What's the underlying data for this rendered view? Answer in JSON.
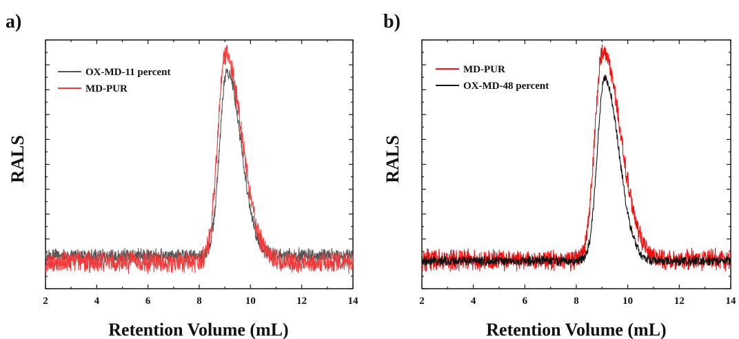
{
  "chart_data": [
    {
      "type": "line",
      "panel_label": "a)",
      "xlabel": "Retention Volume (mL)",
      "ylabel": "RALS",
      "xlim": [
        2,
        14
      ],
      "ylim": [
        -0.12,
        1.0
      ],
      "x_ticks": [
        2,
        4,
        6,
        8,
        10,
        12,
        14
      ],
      "y_tick_labels_shown": false,
      "grid": false,
      "legend_position": "top-left",
      "series": [
        {
          "name": "OX-MD-11 percent",
          "color": "#555555",
          "baseline": 0.03,
          "noise_amplitude": 0.035,
          "peak": {
            "center": 9.08,
            "height": 0.86,
            "sigma_left": 0.28,
            "sigma_right": 0.55
          },
          "x": [
            2,
            8.2,
            8.5,
            8.8,
            9.0,
            9.1,
            9.3,
            9.6,
            10.0,
            10.5,
            11.0,
            12.0,
            14.0
          ],
          "y": [
            0.03,
            0.04,
            0.23,
            0.66,
            0.86,
            0.87,
            0.82,
            0.58,
            0.31,
            0.13,
            0.06,
            0.035,
            0.03
          ]
        },
        {
          "name": "MD-PUR",
          "color": "#ee3a3a",
          "baseline": 0.0,
          "noise_amplitude": 0.055,
          "peak": {
            "center": 9.02,
            "height": 0.93,
            "sigma_left": 0.3,
            "sigma_right": 0.65
          },
          "x": [
            2,
            8.2,
            8.5,
            8.8,
            9.0,
            9.1,
            9.3,
            9.6,
            10.0,
            10.5,
            11.0,
            12.0,
            14.0
          ],
          "y": [
            0.0,
            0.02,
            0.3,
            0.75,
            0.93,
            0.92,
            0.86,
            0.66,
            0.41,
            0.2,
            0.06,
            0.01,
            0.0
          ]
        }
      ]
    },
    {
      "type": "line",
      "panel_label": "b)",
      "xlabel": "Retention Volume (mL)",
      "ylabel": "RALS",
      "xlim": [
        2,
        14
      ],
      "ylim": [
        -0.12,
        1.0
      ],
      "x_ticks": [
        2,
        4,
        6,
        8,
        10,
        12,
        14
      ],
      "y_tick_labels_shown": false,
      "grid": false,
      "legend_position": "top-left",
      "series": [
        {
          "name": "MD-PUR",
          "color": "#ee1111",
          "baseline": 0.01,
          "noise_amplitude": 0.055,
          "peak": {
            "center": 9.02,
            "height": 0.95,
            "sigma_left": 0.3,
            "sigma_right": 0.7
          },
          "x": [
            2,
            8.2,
            8.5,
            8.8,
            9.0,
            9.1,
            9.3,
            9.6,
            10.0,
            10.5,
            11.0,
            12.0,
            14.0
          ],
          "y": [
            0.01,
            0.03,
            0.3,
            0.77,
            0.95,
            0.94,
            0.87,
            0.66,
            0.44,
            0.24,
            0.07,
            0.02,
            0.01
          ]
        },
        {
          "name": "OX-MD-48 percent",
          "color": "#111111",
          "baseline": 0.005,
          "noise_amplitude": 0.025,
          "peak": {
            "center": 9.1,
            "height": 0.83,
            "sigma_left": 0.28,
            "sigma_right": 0.55
          },
          "x": [
            2,
            8.2,
            8.5,
            8.8,
            9.0,
            9.1,
            9.3,
            9.6,
            10.0,
            10.5,
            11.0,
            12.0,
            14.0
          ],
          "y": [
            0.005,
            0.02,
            0.2,
            0.63,
            0.82,
            0.83,
            0.78,
            0.55,
            0.3,
            0.12,
            0.03,
            0.01,
            0.005
          ]
        }
      ]
    }
  ]
}
